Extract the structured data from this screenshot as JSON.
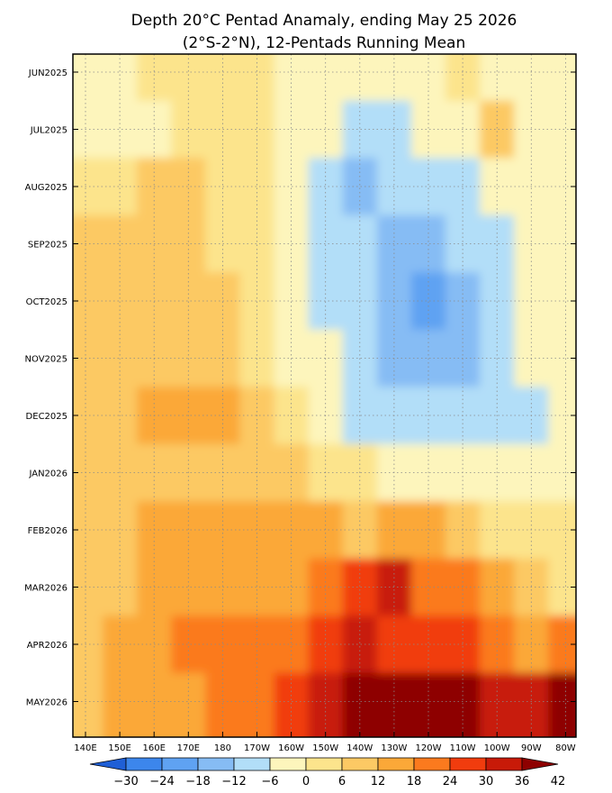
{
  "chart_data": {
    "type": "heatmap",
    "title": "Depth 20°C Pentad Anamaly, ending May 25 2026",
    "subtitle": "(2°S-2°N), 12-Pentads Running Mean",
    "xlabel": "",
    "ylabel": "",
    "x_ticks": [
      "140E",
      "150E",
      "160E",
      "170E",
      "180",
      "170W",
      "160W",
      "150W",
      "140W",
      "130W",
      "120W",
      "110W",
      "100W",
      "90W",
      "80W"
    ],
    "y_ticks": [
      "JUN2025",
      "JUL2025",
      "AUG2025",
      "SEP2025",
      "OCT2025",
      "NOV2025",
      "DEC2025",
      "JAN2026",
      "FEB2026",
      "MAR2026",
      "APR2026",
      "MAY2026"
    ],
    "grid": true,
    "colorbar": {
      "levels": [
        -30,
        -24,
        -18,
        -12,
        -6,
        0,
        6,
        12,
        18,
        24,
        30,
        36,
        42
      ],
      "colors": [
        "#1f5fd6",
        "#3c86ec",
        "#5fa2f2",
        "#86bcf4",
        "#b2def8",
        "#fdf5bc",
        "#fce48c",
        "#fcc964",
        "#fba838",
        "#fb7a1e",
        "#f13c0e",
        "#c81a08",
        "#8e0000"
      ]
    },
    "x": [
      "140E",
      "150E",
      "160E",
      "170E",
      "180",
      "170W",
      "160W",
      "150W",
      "140W",
      "130W",
      "120W",
      "110W",
      "100W",
      "90W",
      "80W"
    ],
    "y": [
      "JUN2025",
      "JUL2025",
      "AUG2025",
      "SEP2025",
      "OCT2025",
      "NOV2025",
      "DEC2025",
      "JAN2026",
      "FEB2026",
      "MAR2026",
      "APR2026",
      "MAY2026"
    ],
    "values": [
      [
        -3,
        -2,
        2,
        4,
        3,
        2,
        -2,
        -4,
        -3,
        -5,
        -2,
        2,
        -2,
        -4,
        -3
      ],
      [
        -3,
        -2,
        -1,
        4,
        3,
        1,
        -4,
        -6,
        -9,
        -8,
        -6,
        -4,
        10,
        -3,
        -5
      ],
      [
        2,
        5,
        6,
        6,
        3,
        0,
        -4,
        -8,
        -14,
        -12,
        -10,
        -7,
        -5,
        -4,
        -5
      ],
      [
        6,
        7,
        8,
        7,
        4,
        1,
        -5,
        -10,
        -12,
        -14,
        -13,
        -10,
        -7,
        -4,
        -3
      ],
      [
        9,
        8,
        8,
        7,
        6,
        3,
        -4,
        -8,
        -11,
        -14,
        -22,
        -14,
        -9,
        -5,
        -3
      ],
      [
        7,
        8,
        9,
        8,
        8,
        4,
        -2,
        -5,
        -9,
        -13,
        -14,
        -13,
        -9,
        -5,
        -3
      ],
      [
        6,
        9,
        12,
        14,
        12,
        9,
        3,
        -2,
        -8,
        -12,
        -11,
        -9,
        -10,
        -7,
        -4
      ],
      [
        7,
        9,
        11,
        11,
        11,
        9,
        7,
        4,
        1,
        -4,
        -6,
        -6,
        -6,
        -4,
        -3
      ],
      [
        9,
        11,
        14,
        13,
        13,
        13,
        12,
        12,
        11,
        16,
        14,
        9,
        5,
        2,
        0
      ],
      [
        8,
        11,
        13,
        16,
        16,
        17,
        16,
        20,
        24,
        30,
        22,
        18,
        12,
        6,
        3
      ],
      [
        9,
        13,
        15,
        18,
        21,
        22,
        23,
        28,
        31,
        29,
        26,
        24,
        20,
        17,
        21
      ],
      [
        7,
        12,
        14,
        17,
        20,
        21,
        27,
        35,
        40,
        38,
        36,
        37,
        33,
        34,
        45
      ]
    ]
  }
}
